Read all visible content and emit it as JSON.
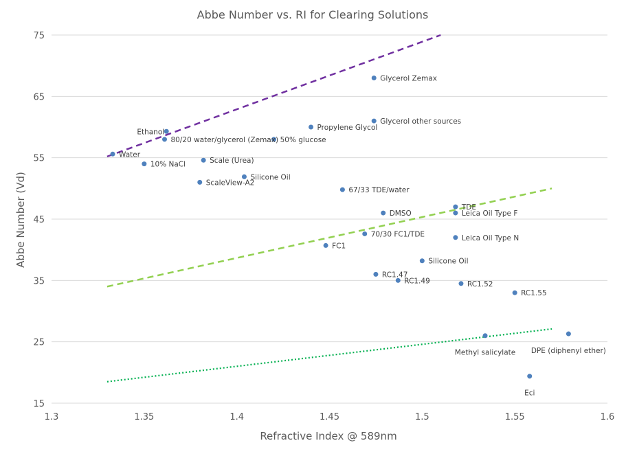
{
  "chart_data": {
    "type": "scatter",
    "title": "Abbe Number vs. RI for Clearing Solutions",
    "xlabel": "Refractive Index @ 589nm",
    "ylabel": "Abbe Number (Vd)",
    "xlim": [
      1.3,
      1.6
    ],
    "ylim": [
      15,
      75
    ],
    "xticks": [
      "1.3",
      "1.35",
      "1.4",
      "1.45",
      "1.5",
      "1.55",
      "1.6"
    ],
    "yticks": [
      "15",
      "25",
      "35",
      "45",
      "55",
      "65",
      "75"
    ],
    "grid": "horizontal",
    "legend": "none",
    "colors": {
      "points": "#4f81bd",
      "upper_line": "#7030a0",
      "middle_line": "#92d050",
      "lower_line": "#00b050",
      "grid": "#d9d9d9",
      "text": "#595959"
    },
    "points": [
      {
        "label": "Water",
        "x": 1.333,
        "y": 55.6,
        "pos": "right"
      },
      {
        "label": "10% NaCl",
        "x": 1.35,
        "y": 54.0,
        "pos": "right"
      },
      {
        "label": "Ethanol",
        "x": 1.362,
        "y": 59.3,
        "pos": "left"
      },
      {
        "label": "80/20 water/glycerol (Zemax)",
        "x": 1.361,
        "y": 58.0,
        "pos": "right"
      },
      {
        "label": "Scale (Urea)",
        "x": 1.382,
        "y": 54.6,
        "pos": "right"
      },
      {
        "label": "ScaleView-A2",
        "x": 1.38,
        "y": 51.0,
        "pos": "right"
      },
      {
        "label": "Silicone Oil",
        "x": 1.404,
        "y": 51.9,
        "pos": "right"
      },
      {
        "label": "50% glucose",
        "x": 1.42,
        "y": 58.0,
        "pos": "right"
      },
      {
        "label": "Propylene Glycol",
        "x": 1.44,
        "y": 60.0,
        "pos": "right"
      },
      {
        "label": "Glycerol Zemax",
        "x": 1.474,
        "y": 68.0,
        "pos": "right"
      },
      {
        "label": "Glycerol other sources",
        "x": 1.474,
        "y": 61.0,
        "pos": "right"
      },
      {
        "label": "67/33 TDE/water",
        "x": 1.457,
        "y": 49.8,
        "pos": "right"
      },
      {
        "label": "DMSO",
        "x": 1.479,
        "y": 46.0,
        "pos": "right"
      },
      {
        "label": "70/30 FC1/TDE",
        "x": 1.469,
        "y": 42.6,
        "pos": "right"
      },
      {
        "label": "FC1",
        "x": 1.448,
        "y": 40.7,
        "pos": "right"
      },
      {
        "label": "TDE",
        "x": 1.518,
        "y": 47.0,
        "pos": "right"
      },
      {
        "label": "Leica Oil Type F",
        "x": 1.518,
        "y": 46.0,
        "pos": "right"
      },
      {
        "label": "Leica Oil Type N",
        "x": 1.518,
        "y": 42.0,
        "pos": "right"
      },
      {
        "label": "Silicone Oil",
        "x": 1.5,
        "y": 38.2,
        "pos": "right"
      },
      {
        "label": "RC1.47",
        "x": 1.475,
        "y": 36.0,
        "pos": "right"
      },
      {
        "label": "RC1.49",
        "x": 1.487,
        "y": 35.0,
        "pos": "right"
      },
      {
        "label": "RC1.52",
        "x": 1.521,
        "y": 34.5,
        "pos": "right"
      },
      {
        "label": "RC1.55",
        "x": 1.55,
        "y": 33.0,
        "pos": "right"
      },
      {
        "label": "Methyl salicylate",
        "x": 1.534,
        "y": 26.0,
        "pos": "below"
      },
      {
        "label": "DPE (diphenyl ether)",
        "x": 1.579,
        "y": 26.3,
        "pos": "below"
      },
      {
        "label": "Eci",
        "x": 1.558,
        "y": 19.4,
        "pos": "below"
      }
    ],
    "lines": [
      {
        "style": "dashed",
        "color": "#7030a0",
        "x": [
          1.33,
          1.51
        ],
        "y": [
          55.2,
          75.0
        ]
      },
      {
        "style": "dashed",
        "color": "#92d050",
        "x": [
          1.33,
          1.57
        ],
        "y": [
          34.0,
          50.0
        ]
      },
      {
        "style": "dotted",
        "color": "#00b050",
        "x": [
          1.33,
          1.57
        ],
        "y": [
          18.5,
          27.1
        ]
      }
    ]
  }
}
